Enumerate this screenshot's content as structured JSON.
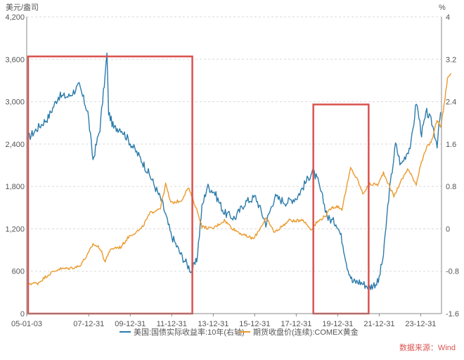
{
  "chart_data": {
    "type": "line",
    "left_axis_unit": "美元/盎司",
    "right_axis_unit": "%",
    "x_tick_labels": [
      "05-01-03",
      "07-12-31",
      "09-12-31",
      "11-12-31",
      "13-12-31",
      "15-12-31",
      "17-12-31",
      "19-12-31",
      "21-12-31",
      "23-12-31"
    ],
    "x_range": [
      "2005-01-03",
      "2024-12-31"
    ],
    "ylim_left": [
      0,
      4200
    ],
    "yticks_left": [
      0,
      600,
      1200,
      1800,
      2400,
      3000,
      3600,
      4200
    ],
    "ylim_right": [
      -1.6,
      4
    ],
    "yticks_right": [
      -1.6,
      -0.8,
      0,
      0.8,
      1.6,
      2.4,
      3.2,
      4
    ],
    "grid": true,
    "legend_position": "bottom",
    "source_note": "数据来源：Wind",
    "colors": {
      "real_yield": "#2b7bab",
      "gold": "#eb9a2c",
      "highlight_box": "#d9534f",
      "grid": "#d9d9d9",
      "axis_text": "#555555"
    },
    "series": [
      {
        "name": "美国:国债实际收益率:10年(右轴)",
        "axis": "right",
        "points": [
          [
            "2005-01",
            1.7
          ],
          [
            "2005-07",
            1.9
          ],
          [
            "2006-01",
            2.1
          ],
          [
            "2006-07",
            2.5
          ],
          [
            "2007-01",
            2.5
          ],
          [
            "2007-07",
            2.7
          ],
          [
            "2007-12",
            2.2
          ],
          [
            "2008-03",
            1.3
          ],
          [
            "2008-07",
            1.9
          ],
          [
            "2008-10",
            2.9
          ],
          [
            "2008-11",
            3.3
          ],
          [
            "2008-12",
            2.2
          ],
          [
            "2009-03",
            1.9
          ],
          [
            "2009-07",
            1.9
          ],
          [
            "2010-01",
            1.6
          ],
          [
            "2010-07",
            1.3
          ],
          [
            "2010-12",
            1.0
          ],
          [
            "2011-07",
            0.5
          ],
          [
            "2011-12",
            -0.1
          ],
          [
            "2012-06",
            -0.5
          ],
          [
            "2012-12",
            -0.8
          ],
          [
            "2013-03",
            -0.6
          ],
          [
            "2013-06",
            0.4
          ],
          [
            "2013-09",
            0.8
          ],
          [
            "2014-01",
            0.7
          ],
          [
            "2014-07",
            0.3
          ],
          [
            "2015-01",
            0.2
          ],
          [
            "2015-07",
            0.5
          ],
          [
            "2016-01",
            0.6
          ],
          [
            "2016-07",
            0.1
          ],
          [
            "2016-12",
            0.6
          ],
          [
            "2017-07",
            0.5
          ],
          [
            "2018-01",
            0.6
          ],
          [
            "2018-10",
            1.1
          ],
          [
            "2019-01",
            0.9
          ],
          [
            "2019-07",
            0.2
          ],
          [
            "2019-12",
            0.1
          ],
          [
            "2020-03",
            -0.2
          ],
          [
            "2020-06",
            -0.7
          ],
          [
            "2020-09",
            -1.0
          ],
          [
            "2021-01",
            -1.0
          ],
          [
            "2021-07",
            -1.1
          ],
          [
            "2021-12",
            -1.0
          ],
          [
            "2022-03",
            -0.5
          ],
          [
            "2022-06",
            0.6
          ],
          [
            "2022-10",
            1.6
          ],
          [
            "2023-01",
            1.2
          ],
          [
            "2023-07",
            1.6
          ],
          [
            "2023-10",
            2.4
          ],
          [
            "2024-01",
            1.8
          ],
          [
            "2024-04",
            2.2
          ],
          [
            "2024-07",
            2.0
          ],
          [
            "2024-10",
            1.6
          ],
          [
            "2024-12",
            2.2
          ]
        ]
      },
      {
        "name": "期货收盘价(连续):COMEX黄金",
        "axis": "left",
        "points": [
          [
            "2005-01",
            425
          ],
          [
            "2005-07",
            430
          ],
          [
            "2006-01",
            550
          ],
          [
            "2006-07",
            630
          ],
          [
            "2007-01",
            640
          ],
          [
            "2007-07",
            670
          ],
          [
            "2007-12",
            835
          ],
          [
            "2008-03",
            985
          ],
          [
            "2008-07",
            930
          ],
          [
            "2008-10",
            730
          ],
          [
            "2008-12",
            870
          ],
          [
            "2009-03",
            930
          ],
          [
            "2009-07",
            940
          ],
          [
            "2009-12",
            1100
          ],
          [
            "2010-07",
            1200
          ],
          [
            "2010-12",
            1420
          ],
          [
            "2011-06",
            1500
          ],
          [
            "2011-09",
            1830
          ],
          [
            "2011-12",
            1565
          ],
          [
            "2012-06",
            1600
          ],
          [
            "2012-10",
            1780
          ],
          [
            "2012-12",
            1670
          ],
          [
            "2013-04",
            1400
          ],
          [
            "2013-06",
            1230
          ],
          [
            "2013-12",
            1200
          ],
          [
            "2014-07",
            1320
          ],
          [
            "2014-12",
            1200
          ],
          [
            "2015-07",
            1100
          ],
          [
            "2015-12",
            1060
          ],
          [
            "2016-07",
            1350
          ],
          [
            "2016-12",
            1150
          ],
          [
            "2017-09",
            1330
          ],
          [
            "2017-12",
            1300
          ],
          [
            "2018-04",
            1340
          ],
          [
            "2018-09",
            1190
          ],
          [
            "2018-12",
            1280
          ],
          [
            "2019-06",
            1400
          ],
          [
            "2019-09",
            1500
          ],
          [
            "2019-12",
            1520
          ],
          [
            "2020-03",
            1480
          ],
          [
            "2020-08",
            2060
          ],
          [
            "2020-12",
            1890
          ],
          [
            "2021-03",
            1700
          ],
          [
            "2021-07",
            1830
          ],
          [
            "2021-12",
            1830
          ],
          [
            "2022-03",
            2000
          ],
          [
            "2022-09",
            1660
          ],
          [
            "2022-12",
            1820
          ],
          [
            "2023-05",
            2050
          ],
          [
            "2023-10",
            1830
          ],
          [
            "2023-12",
            2070
          ],
          [
            "2024-04",
            2350
          ],
          [
            "2024-07",
            2450
          ],
          [
            "2024-10",
            2750
          ],
          [
            "2024-12",
            2640
          ],
          [
            "2025-02",
            2950
          ],
          [
            "2025-04",
            3330
          ],
          [
            "2025-06",
            3400
          ]
        ]
      }
    ],
    "highlight_regions": [
      {
        "x_start": "2005-01",
        "x_end": "2012-12"
      },
      {
        "x_start": "2018-10",
        "x_end": "2021-06"
      }
    ]
  }
}
